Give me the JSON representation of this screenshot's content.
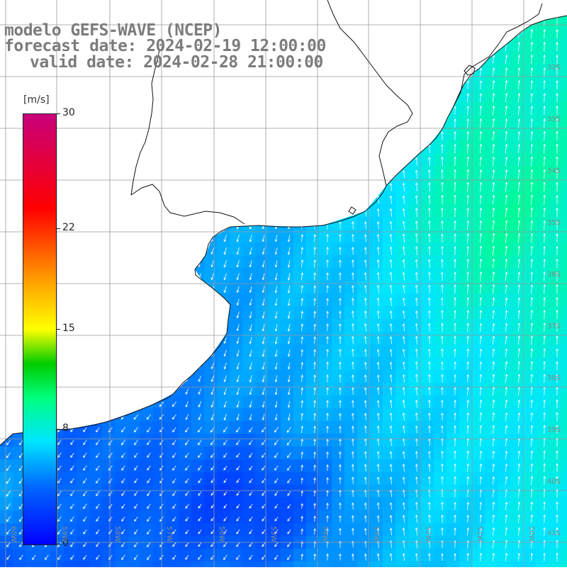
{
  "title": {
    "line1": "modelo GEFS-WAVE (NCEP)",
    "line2": "forecast date: 2024-02-19 12:00:00",
    "line3": "valid date: 2024-02-28 21:00:00"
  },
  "colorbar": {
    "unit": "[m/s]",
    "labels": [
      "30",
      "22",
      "15",
      "8",
      "0"
    ],
    "label_values": [
      30,
      22,
      15,
      8,
      0
    ],
    "min": 0,
    "max": 30
  },
  "map": {
    "lat_labels": [
      "32S",
      "33S",
      "34S",
      "35S",
      "36S",
      "37S",
      "38S",
      "39S",
      "40S",
      "41S"
    ],
    "lon_labels": [
      "60W",
      "59W",
      "58W",
      "57W",
      "56W",
      "55W",
      "54W",
      "53W",
      "52W",
      "51W",
      "50W"
    ],
    "colors": {
      "land": "#ffffff",
      "grid": "#9a9a9a",
      "coast": "#111111",
      "arrows": "#ffffff",
      "title_text": "#7c7c7c"
    },
    "field": "wind speed (m/s) with direction arrows"
  }
}
